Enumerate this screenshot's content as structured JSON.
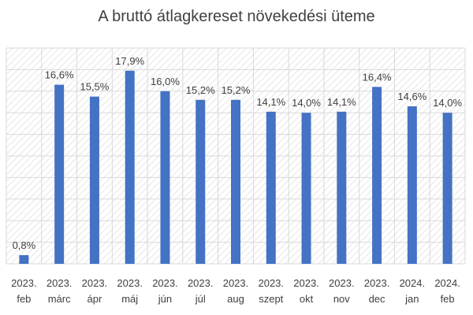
{
  "chart_data": {
    "type": "bar",
    "title": "A bruttó átlagkereset növekedési üteme",
    "categories": [
      [
        "2023.",
        "feb"
      ],
      [
        "2023.",
        "márc"
      ],
      [
        "2023.",
        "ápr"
      ],
      [
        "2023.",
        "máj"
      ],
      [
        "2023.",
        "jún"
      ],
      [
        "2023.",
        "júl"
      ],
      [
        "2023.",
        "aug"
      ],
      [
        "2023.",
        "szept"
      ],
      [
        "2023.",
        "okt"
      ],
      [
        "2023.",
        "nov"
      ],
      [
        "2023.",
        "dec"
      ],
      [
        "2024.",
        "jan"
      ],
      [
        "2024.",
        "feb"
      ]
    ],
    "values": [
      0.8,
      16.6,
      15.5,
      17.9,
      16.0,
      15.2,
      15.2,
      14.1,
      14.0,
      14.1,
      16.4,
      14.6,
      14.0
    ],
    "data_labels": [
      "0,8%",
      "16,6%",
      "15,5%",
      "17,9%",
      "16,0%",
      "15,2%",
      "15,2%",
      "14,1%",
      "14,0%",
      "14,1%",
      "16,4%",
      "14,6%",
      "14,0%"
    ],
    "ylim": [
      0,
      20
    ],
    "grid": true,
    "bar_color": "#4472C4",
    "grid_color": "#d9d9d9"
  }
}
